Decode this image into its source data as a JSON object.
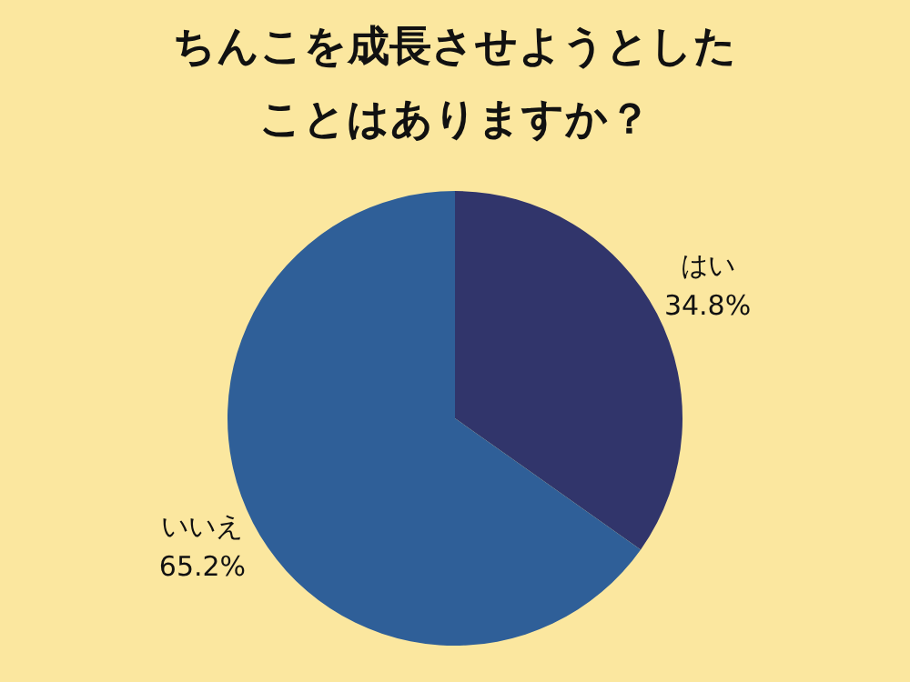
{
  "chart_data": {
    "type": "pie",
    "title": "ちんこを成長させようとしたことはありますか？",
    "categories": [
      "はい",
      "いいえ"
    ],
    "values": [
      34.8,
      65.2
    ],
    "value_labels": [
      "34.8%",
      "65.2%"
    ],
    "colors": [
      "#31356b",
      "#2f5f98"
    ],
    "legend": false
  }
}
